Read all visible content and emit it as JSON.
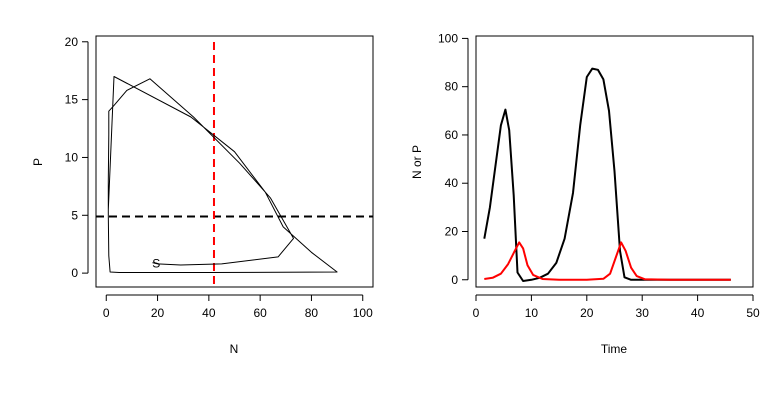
{
  "chart_data": [
    {
      "type": "line",
      "panel": "phase-plane",
      "xlabel": "N",
      "ylabel": "P",
      "xlim": [
        -4,
        104
      ],
      "ylim": [
        -1.2,
        20.5
      ],
      "xticks": [
        0,
        20,
        40,
        60,
        80,
        100
      ],
      "yticks": [
        0,
        5,
        10,
        15,
        20
      ],
      "series": [
        {
          "color": "#000000",
          "points": [
            [
              18,
              0.9
            ],
            [
              20,
              0.8
            ],
            [
              29,
              0.7
            ],
            [
              45,
              0.8
            ],
            [
              67,
              1.4
            ],
            [
              73,
              3.0
            ],
            [
              64,
              6.5
            ],
            [
              52,
              9.5
            ],
            [
              34,
              13.5
            ],
            [
              17,
              16.8
            ],
            [
              8,
              15.8
            ],
            [
              3,
              14.5
            ],
            [
              1,
              14.0
            ],
            [
              1,
              12.0
            ],
            [
              0.8,
              8.0
            ],
            [
              0.8,
              5.5
            ],
            [
              3,
              17.0
            ],
            [
              33,
              13.5
            ],
            [
              50,
              10.5
            ],
            [
              62,
              7.0
            ],
            [
              69,
              4.0
            ],
            [
              80,
              1.8
            ],
            [
              90,
              0.1
            ],
            [
              40,
              0.05
            ],
            [
              5,
              0.05
            ],
            [
              1.5,
              0.1
            ],
            [
              1,
              1.5
            ],
            [
              0.8,
              5.0
            ],
            [
              0.8,
              8.0
            ]
          ]
        }
      ],
      "hlines": [
        {
          "y": 4.9,
          "color": "#000000",
          "style": "dashed"
        }
      ],
      "vlines": [
        {
          "x": 42,
          "color": "#ff0000",
          "style": "dashed"
        }
      ],
      "annotations": [
        {
          "text": "S",
          "x": 19.5,
          "y": 0.9
        }
      ],
      "grid": false
    },
    {
      "type": "line",
      "panel": "time-series",
      "xlabel": "Time",
      "ylabel": "N or P",
      "xlim": [
        0,
        50
      ],
      "ylim": [
        -3,
        101
      ],
      "xticks": [
        0,
        10,
        20,
        30,
        40,
        50
      ],
      "yticks": [
        0,
        20,
        40,
        60,
        80,
        100
      ],
      "series": [
        {
          "color": "#000000",
          "points": [
            [
              1.5,
              17
            ],
            [
              2.5,
              30
            ],
            [
              3.5,
              47
            ],
            [
              4.5,
              64
            ],
            [
              5.3,
              70.5
            ],
            [
              6,
              62
            ],
            [
              6.8,
              35
            ],
            [
              7.5,
              3
            ],
            [
              8.5,
              -0.5
            ],
            [
              10,
              0
            ],
            [
              11.5,
              0.8
            ],
            [
              13,
              2.5
            ],
            [
              14.5,
              7
            ],
            [
              16,
              17
            ],
            [
              17.5,
              36
            ],
            [
              18.8,
              64
            ],
            [
              20,
              84
            ],
            [
              21,
              87.5
            ],
            [
              22,
              87
            ],
            [
              23,
              83
            ],
            [
              24,
              70
            ],
            [
              25,
              45
            ],
            [
              26,
              12
            ],
            [
              26.8,
              1
            ],
            [
              28,
              0
            ],
            [
              30,
              0
            ],
            [
              35,
              0
            ],
            [
              40,
              0
            ],
            [
              45,
              0
            ],
            [
              46,
              0
            ]
          ]
        },
        {
          "color": "#ff0000",
          "points": [
            [
              1.5,
              0.3
            ],
            [
              3,
              0.8
            ],
            [
              4.5,
              2.5
            ],
            [
              5.8,
              6.5
            ],
            [
              7,
              12
            ],
            [
              7.8,
              15.5
            ],
            [
              8.5,
              13
            ],
            [
              9.3,
              6
            ],
            [
              10.3,
              2
            ],
            [
              12,
              0.3
            ],
            [
              15,
              0
            ],
            [
              20,
              0
            ],
            [
              23,
              0.4
            ],
            [
              24.2,
              2.5
            ],
            [
              25.2,
              9
            ],
            [
              26.2,
              15.5
            ],
            [
              27,
              12
            ],
            [
              28,
              5
            ],
            [
              29,
              1.5
            ],
            [
              30.5,
              0.2
            ],
            [
              35,
              0
            ],
            [
              40,
              0
            ],
            [
              46,
              0
            ]
          ]
        }
      ],
      "grid": false
    }
  ]
}
